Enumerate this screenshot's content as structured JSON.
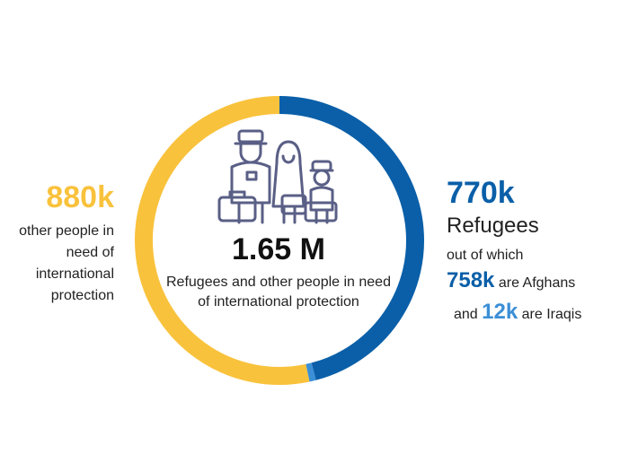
{
  "chart_data": {
    "type": "pie",
    "categories": [
      "Refugees",
      "other people in need of international protection"
    ],
    "values": [
      770,
      880
    ],
    "sub_values": [
      758,
      12
    ],
    "colors": [
      "#0a5fa8",
      "#f9c23c"
    ],
    "sub_colors": [
      "#0a5fa8",
      "#3b8fd6"
    ],
    "total": "1.65 M",
    "total_label": "Refugees and other people in need of international protection"
  },
  "left": {
    "value": "880k",
    "desc": "other people in need of international protection"
  },
  "right": {
    "value": "770k",
    "label": "Refugees",
    "line1": "out of which",
    "afghans_value": "758k",
    "afghans_text": "are Afghans",
    "and_text": "and",
    "iraqis_value": "12k",
    "iraqis_text": "are Iraqis"
  },
  "icon": "refugee-family-icon"
}
